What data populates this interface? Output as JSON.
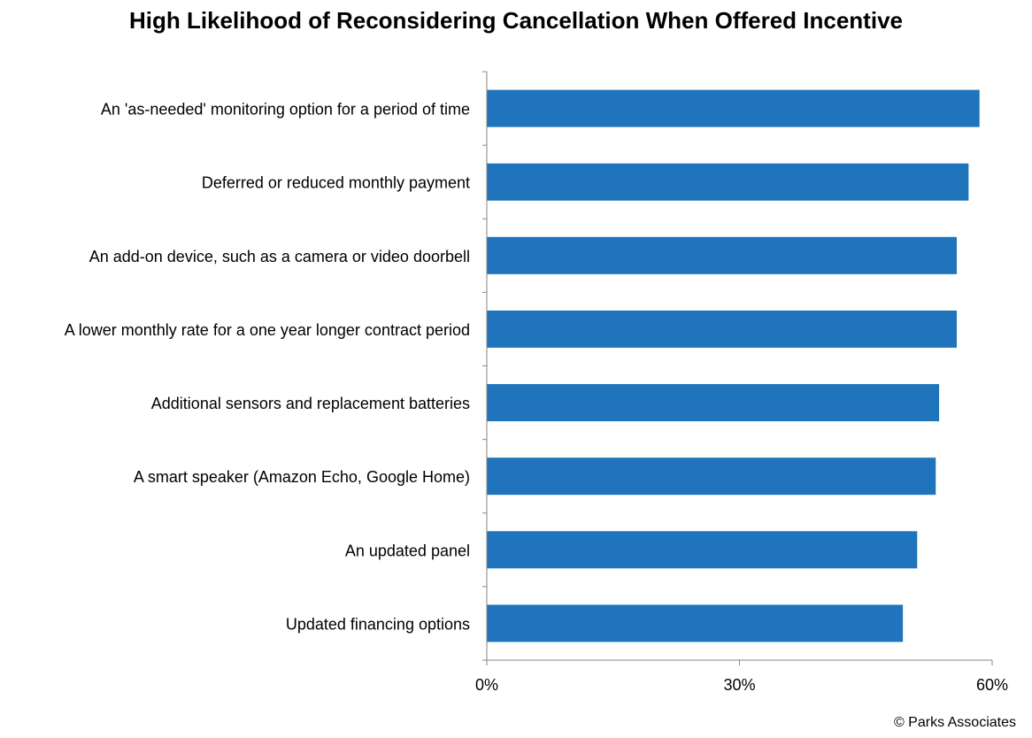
{
  "chart_data": {
    "type": "bar",
    "orientation": "horizontal",
    "title": "High Likelihood of Reconsidering Cancellation When Offered Incentive",
    "categories": [
      "An 'as-needed' monitoring option for a period of time",
      "Deferred or reduced monthly payment",
      "An add-on device, such as a camera or video doorbell",
      "A lower monthly rate for a one year longer contract period",
      "Additional sensors and replacement batteries",
      "A smart speaker (Amazon Echo, Google Home)",
      "An updated panel",
      "Updated financing options"
    ],
    "values": [
      58.5,
      57.2,
      55.8,
      55.8,
      53.7,
      53.3,
      51.1,
      49.4
    ],
    "xlim": [
      0,
      60
    ],
    "xticks": [
      0,
      30,
      60
    ],
    "xtick_labels": [
      "0%",
      "30%",
      "60%"
    ],
    "xlabel": "",
    "ylabel": "",
    "grid": false,
    "bar_color": "#1f74bb"
  },
  "footer": {
    "copyright": "© Parks Associates"
  }
}
